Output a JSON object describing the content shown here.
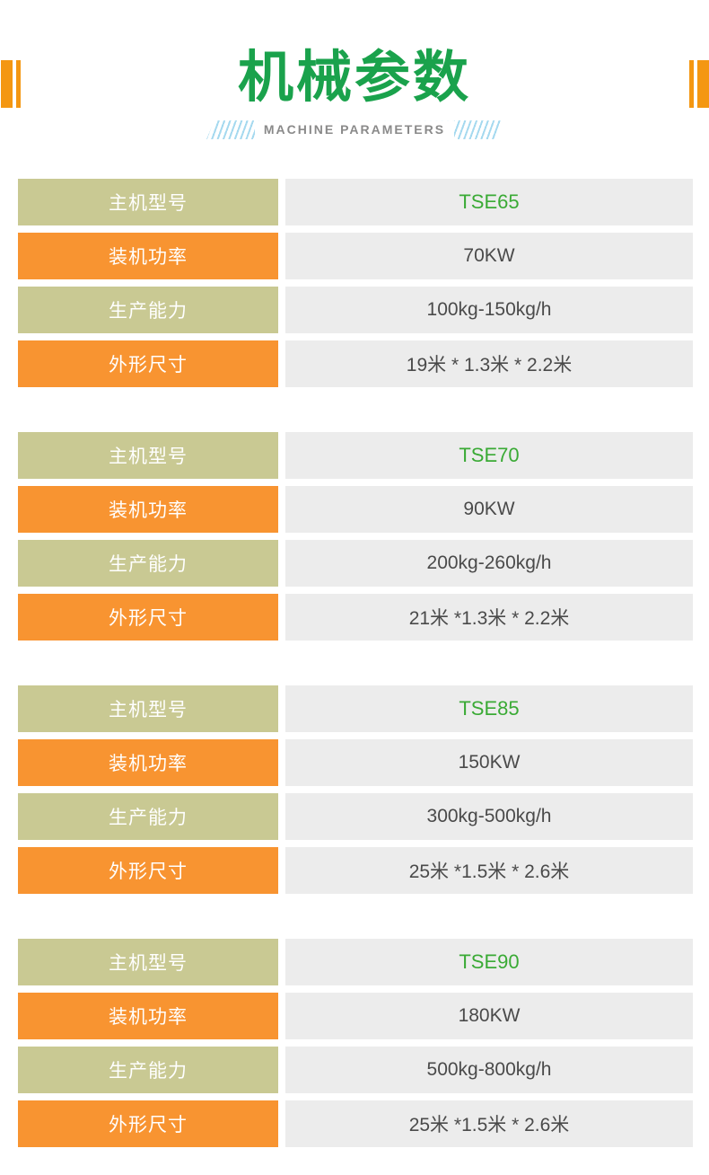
{
  "page": {
    "title": "机械参数",
    "subtitle": "MACHINE PARAMETERS"
  },
  "colors": {
    "title_green": "#1aa24c",
    "model_green": "#3aaa35",
    "olive": "#c9c993",
    "orange": "#f89431",
    "orange_bar": "#f49712",
    "value_bg": "#ececec",
    "value_text": "#4a4a4a",
    "stripe_blue": "#a5d9ef",
    "subtitle_gray": "#8a8a8a"
  },
  "row_labels": {
    "model": "主机型号",
    "power": "装机功率",
    "capacity": "生产能力",
    "dimensions": "外形尺寸"
  },
  "tables": [
    {
      "model": "TSE65",
      "power": "70KW",
      "capacity": "100kg-150kg/h",
      "dimensions": "19米 * 1.3米 * 2.2米"
    },
    {
      "model": "TSE70",
      "power": "90KW",
      "capacity": "200kg-260kg/h",
      "dimensions": "21米 *1.3米 * 2.2米"
    },
    {
      "model": "TSE85",
      "power": "150KW",
      "capacity": "300kg-500kg/h",
      "dimensions": "25米 *1.5米 * 2.6米"
    },
    {
      "model": "TSE90",
      "power": "180KW",
      "capacity": "500kg-800kg/h",
      "dimensions": "25米 *1.5米 * 2.6米"
    }
  ]
}
